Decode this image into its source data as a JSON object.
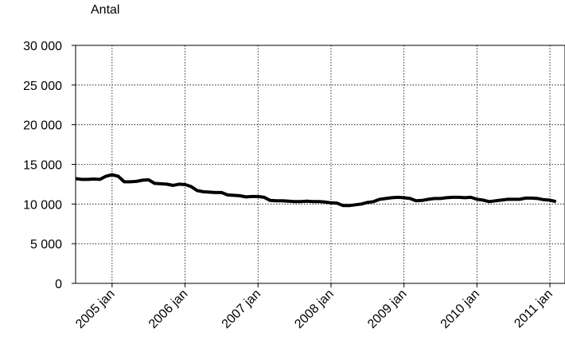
{
  "chart_data": {
    "type": "line",
    "ylabel": "Antal",
    "xlabel": "",
    "title": "",
    "ylim": [
      0,
      30000
    ],
    "y_ticks": [
      0,
      5000,
      10000,
      15000,
      20000,
      25000,
      30000
    ],
    "y_tick_labels": [
      "0",
      "5 000",
      "10 000",
      "15 000",
      "20 000",
      "25 000",
      "30 000"
    ],
    "x_tick_labels": [
      "2005 jan",
      "2006 jan",
      "2007 jan",
      "2008 jan",
      "2009 jan",
      "2010 jan",
      "2011 jan"
    ],
    "grid": true,
    "line_color": "#000000",
    "series": [
      {
        "values": [
          13200,
          13100,
          13100,
          13150,
          13100,
          13500,
          13700,
          13500,
          12800,
          12800,
          12850,
          13000,
          13050,
          12600,
          12550,
          12500,
          12350,
          12500,
          12450,
          12200,
          11700,
          11550,
          11500,
          11450,
          11450,
          11150,
          11100,
          11050,
          10900,
          10950,
          10950,
          10850,
          10450,
          10400,
          10400,
          10350,
          10300,
          10300,
          10350,
          10300,
          10300,
          10250,
          10150,
          10100,
          9800,
          9800,
          9900,
          10000,
          10200,
          10300,
          10600,
          10700,
          10800,
          10850,
          10800,
          10700,
          10400,
          10450,
          10600,
          10700,
          10700,
          10800,
          10850,
          10850,
          10800,
          10850,
          10600,
          10500,
          10300,
          10400,
          10500,
          10600,
          10600,
          10600,
          10750,
          10750,
          10700,
          10550,
          10500,
          10300
        ]
      }
    ]
  }
}
